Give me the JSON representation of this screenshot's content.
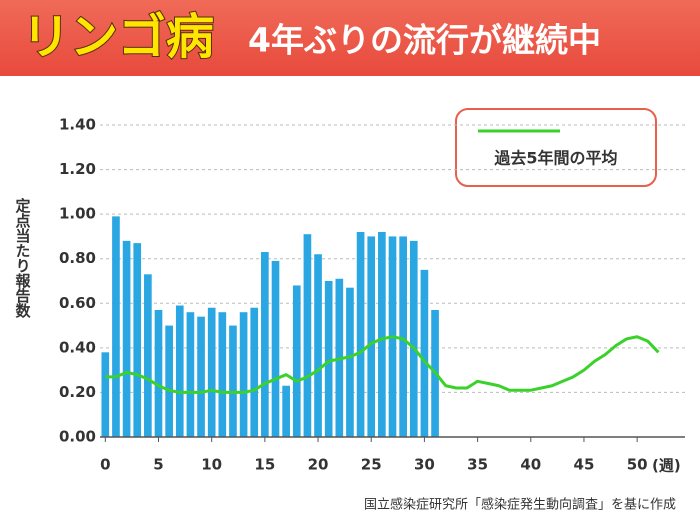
{
  "chart_data": {
    "type": "bar",
    "title": "リンゴ病",
    "subtitle": "4年ぶりの流行が継続中",
    "y_label": "定点当たり報告数",
    "x_unit": "(週)",
    "source": "国立感染症研究所「感染症発生動向調査」を基に作成",
    "x": [
      0,
      1,
      2,
      3,
      4,
      5,
      6,
      7,
      8,
      9,
      10,
      11,
      12,
      13,
      14,
      15,
      16,
      17,
      18,
      19,
      20,
      21,
      22,
      23,
      24,
      25,
      26,
      27,
      28,
      29,
      30,
      31,
      32,
      33,
      34,
      35,
      36,
      37,
      38,
      39,
      40,
      41,
      42,
      43,
      44,
      45,
      46,
      47,
      48,
      49,
      50,
      51,
      52
    ],
    "series": [
      {
        "type": "bar",
        "color": "#2aa6e2",
        "values": [
          0.38,
          0.99,
          0.88,
          0.87,
          0.73,
          0.57,
          0.5,
          0.59,
          0.56,
          0.54,
          0.58,
          0.56,
          0.5,
          0.56,
          0.58,
          0.83,
          0.79,
          0.23,
          0.68,
          0.91,
          0.82,
          0.7,
          0.71,
          0.67,
          0.92,
          0.9,
          0.92,
          0.9,
          0.9,
          0.88,
          0.75,
          0.57,
          null,
          null,
          null,
          null,
          null,
          null,
          null,
          null,
          null,
          null,
          null,
          null,
          null,
          null,
          null,
          null,
          null,
          null,
          null,
          null,
          null
        ]
      },
      {
        "type": "line",
        "name": "過去5年間の平均",
        "color": "#3ad22a",
        "values": [
          0.27,
          0.27,
          0.29,
          0.28,
          0.26,
          0.23,
          0.21,
          0.2,
          0.2,
          0.2,
          0.21,
          0.2,
          0.2,
          0.2,
          0.21,
          0.24,
          0.26,
          0.28,
          0.25,
          0.27,
          0.3,
          0.34,
          0.35,
          0.36,
          0.38,
          0.42,
          0.44,
          0.45,
          0.44,
          0.4,
          0.34,
          0.29,
          0.23,
          0.22,
          0.22,
          0.25,
          0.24,
          0.23,
          0.21,
          0.21,
          0.21,
          0.22,
          0.23,
          0.25,
          0.27,
          0.3,
          0.34,
          0.37,
          0.41,
          0.44,
          0.45,
          0.43,
          0.38
        ]
      }
    ],
    "xlim": [
      -0.5,
      54.5
    ],
    "xticks": [
      0,
      5,
      10,
      15,
      20,
      25,
      30,
      35,
      40,
      45,
      50
    ],
    "ylim": [
      0,
      1.4
    ],
    "yticks": [
      {
        "value": 0,
        "label": "0.00"
      },
      {
        "value": 0.2,
        "label": "0.20"
      },
      {
        "value": 0.4,
        "label": "0.40"
      },
      {
        "value": 0.6,
        "label": "0.60"
      },
      {
        "value": 0.8,
        "label": "0.80"
      },
      {
        "value": 1.0,
        "label": "1.00"
      },
      {
        "value": 1.2,
        "label": "1.20"
      },
      {
        "value": 1.4,
        "label": "1.40"
      }
    ],
    "grid": true
  }
}
